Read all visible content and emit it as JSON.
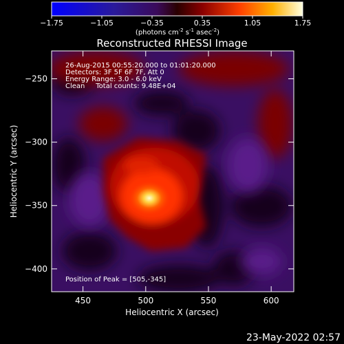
{
  "colorbar": {
    "ticks": [
      "-1.75",
      "-1.05",
      "-0.35",
      "0.35",
      "1.05",
      "1.75"
    ],
    "units_prefix": "(photons cm",
    "units_exp1": "-2",
    "units_mid": " s",
    "units_exp2": "-1",
    "units_suffix": " asec",
    "units_exp3": "-2",
    "units_close": ")",
    "min": -1.75,
    "max": 1.75
  },
  "plot": {
    "title": "Reconstructed RHESSI Image",
    "info_lines": [
      "26-Aug-2015 00:55:20.000 to 01:01:20.000",
      "Detectors: 3F 5F 6F 7F, Att 0",
      "Energy Range: 3.0 - 6.0 keV",
      "Clean     Total counts: 9.48E+04"
    ],
    "peak_label": "Position of Peak = [505,-345]",
    "timestamp": "23-May-2022 02:57"
  },
  "chart_data": {
    "type": "heatmap",
    "title": "Reconstructed RHESSI Image",
    "xlabel": "Heliocentric X (arcsec)",
    "ylabel": "Heliocentric Y (arcsec)",
    "xlim": [
      425,
      618
    ],
    "ylim": [
      -418,
      -228
    ],
    "xticks": [
      450,
      500,
      550,
      600
    ],
    "yticks": [
      -250,
      -300,
      -350,
      -400
    ],
    "xtick_labels": [
      "450",
      "500",
      "550",
      "600"
    ],
    "ytick_labels": [
      "−250",
      "−300",
      "−350",
      "−400"
    ],
    "colormap": "hot-blue diverging",
    "peak": {
      "x": 505,
      "y": -345
    },
    "value_range": [
      -1.75,
      1.75
    ]
  }
}
